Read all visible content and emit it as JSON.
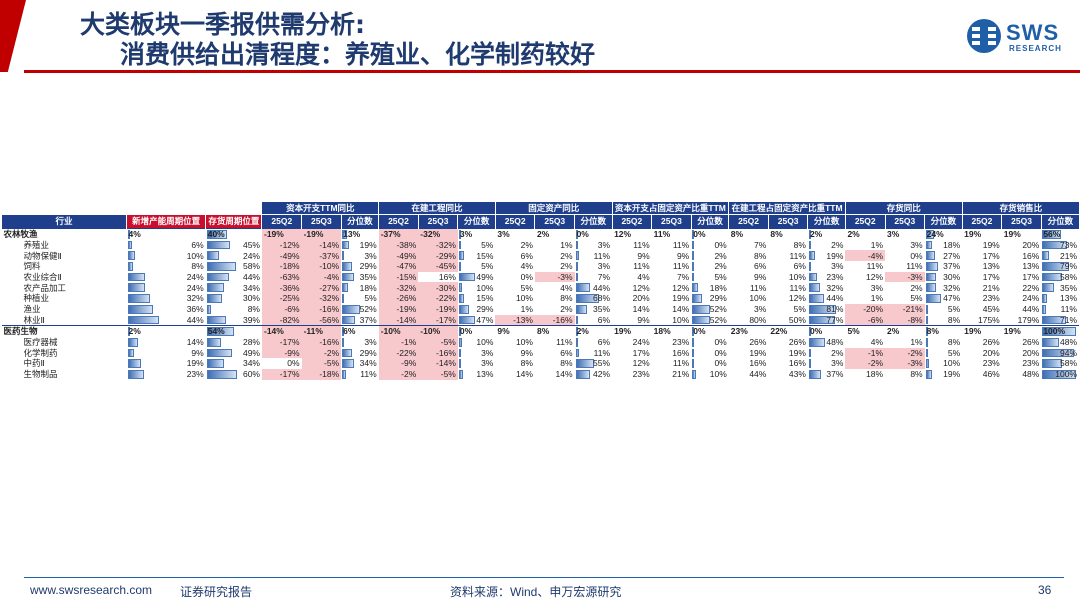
{
  "header": {
    "title_line1": "大类板块一季报供需分析:",
    "title_line2": "消费供给出清程度：养殖业、化学制药较好",
    "logo_text": "SWS",
    "logo_sub": "RESEARCH"
  },
  "table": {
    "group_headers": [
      "资本开支TTM同比",
      "在建工程同比",
      "固定资产同比",
      "资本开支占固定资产比重TTM",
      "在建工程占固定资产比重TTM",
      "存货同比",
      "存货销售比"
    ],
    "col_industry": "行业",
    "col_capacity": "新增产能周期位置",
    "col_inventory": "存货周期位置",
    "sub_headers": [
      "25Q2",
      "25Q3",
      "分位数"
    ],
    "rows": [
      {
        "name": "农林牧渔",
        "sec": true,
        "c1": "4%",
        "c1v": 4,
        "c2": "40%",
        "c2v": 40,
        "g": [
          [
            "-19%",
            "-19%",
            "13%",
            13
          ],
          [
            "-37%",
            "-32%",
            "3%",
            3
          ],
          [
            "3%",
            "2%",
            "0%",
            0
          ],
          [
            "12%",
            "11%",
            "0%",
            0
          ],
          [
            "8%",
            "8%",
            "2%",
            2
          ],
          [
            "2%",
            "3%",
            "24%",
            24
          ],
          [
            "19%",
            "19%",
            "56%",
            56
          ]
        ]
      },
      {
        "name": "养殖业",
        "c1": "6%",
        "c1v": 6,
        "c2": "45%",
        "c2v": 45,
        "g": [
          [
            "-12%",
            "-14%",
            "19%",
            19
          ],
          [
            "-38%",
            "-32%",
            "5%",
            5
          ],
          [
            "2%",
            "1%",
            "3%",
            3
          ],
          [
            "11%",
            "11%",
            "0%",
            0
          ],
          [
            "7%",
            "8%",
            "2%",
            2
          ],
          [
            "1%",
            "3%",
            "18%",
            18
          ],
          [
            "19%",
            "20%",
            "73%",
            73
          ]
        ]
      },
      {
        "name": "动物保健Ⅱ",
        "c1": "10%",
        "c1v": 10,
        "c2": "24%",
        "c2v": 24,
        "g": [
          [
            "-49%",
            "-37%",
            "3%",
            3
          ],
          [
            "-49%",
            "-29%",
            "15%",
            15
          ],
          [
            "6%",
            "2%",
            "11%",
            11
          ],
          [
            "9%",
            "9%",
            "2%",
            2
          ],
          [
            "8%",
            "11%",
            "19%",
            19
          ],
          [
            "-4%",
            "0%",
            "27%",
            27
          ],
          [
            "17%",
            "16%",
            "21%",
            21
          ]
        ]
      },
      {
        "name": "饲料",
        "c1": "8%",
        "c1v": 8,
        "c2": "58%",
        "c2v": 58,
        "g": [
          [
            "-18%",
            "-10%",
            "29%",
            29
          ],
          [
            "-47%",
            "-45%",
            "5%",
            5
          ],
          [
            "4%",
            "2%",
            "3%",
            3
          ],
          [
            "11%",
            "11%",
            "2%",
            2
          ],
          [
            "6%",
            "6%",
            "3%",
            3
          ],
          [
            "11%",
            "11%",
            "37%",
            37
          ],
          [
            "13%",
            "13%",
            "79%",
            79
          ]
        ]
      },
      {
        "name": "农业综合Ⅱ",
        "c1": "24%",
        "c1v": 24,
        "c2": "44%",
        "c2v": 44,
        "g": [
          [
            "-63%",
            "-4%",
            "35%",
            35
          ],
          [
            "-15%",
            "16%",
            "49%",
            49
          ],
          [
            "0%",
            "-3%",
            "7%",
            7
          ],
          [
            "4%",
            "7%",
            "5%",
            5
          ],
          [
            "9%",
            "10%",
            "23%",
            23
          ],
          [
            "12%",
            "-3%",
            "30%",
            30
          ],
          [
            "17%",
            "17%",
            "58%",
            58
          ]
        ]
      },
      {
        "name": "农产品加工",
        "c1": "24%",
        "c1v": 24,
        "c2": "34%",
        "c2v": 34,
        "g": [
          [
            "-36%",
            "-27%",
            "18%",
            18
          ],
          [
            "-32%",
            "-30%",
            "10%",
            10
          ],
          [
            "5%",
            "4%",
            "44%",
            44
          ],
          [
            "12%",
            "12%",
            "18%",
            18
          ],
          [
            "11%",
            "11%",
            "32%",
            32
          ],
          [
            "3%",
            "2%",
            "32%",
            32
          ],
          [
            "21%",
            "22%",
            "35%",
            35
          ]
        ]
      },
      {
        "name": "种植业",
        "c1": "32%",
        "c1v": 32,
        "c2": "30%",
        "c2v": 30,
        "g": [
          [
            "-25%",
            "-32%",
            "5%",
            5
          ],
          [
            "-26%",
            "-22%",
            "15%",
            15
          ],
          [
            "10%",
            "8%",
            "68%",
            68
          ],
          [
            "20%",
            "19%",
            "29%",
            29
          ],
          [
            "10%",
            "12%",
            "44%",
            44
          ],
          [
            "1%",
            "5%",
            "47%",
            47
          ],
          [
            "23%",
            "24%",
            "13%",
            13
          ]
        ]
      },
      {
        "name": "渔业",
        "c1": "36%",
        "c1v": 36,
        "c2": "8%",
        "c2v": 8,
        "g": [
          [
            "-6%",
            "-16%",
            "52%",
            52
          ],
          [
            "-19%",
            "-19%",
            "29%",
            29
          ],
          [
            "1%",
            "2%",
            "35%",
            35
          ],
          [
            "14%",
            "14%",
            "52%",
            52
          ],
          [
            "3%",
            "5%",
            "81%",
            81
          ],
          [
            "-20%",
            "-21%",
            "5%",
            5
          ],
          [
            "45%",
            "44%",
            "11%",
            11
          ]
        ]
      },
      {
        "name": "林业Ⅱ",
        "c1": "44%",
        "c1v": 44,
        "c2": "39%",
        "c2v": 39,
        "g": [
          [
            "-82%",
            "-56%",
            "37%",
            37
          ],
          [
            "-14%",
            "-17%",
            "47%",
            47
          ],
          [
            "-13%",
            "-16%",
            "6%",
            6
          ],
          [
            "9%",
            "10%",
            "52%",
            52
          ],
          [
            "80%",
            "50%",
            "77%",
            77
          ],
          [
            "-6%",
            "-8%",
            "8%",
            8
          ],
          [
            "175%",
            "179%",
            "71%",
            71
          ]
        ]
      },
      {
        "name": "医药生物",
        "sec": true,
        "c1": "2%",
        "c1v": 2,
        "c2": "54%",
        "c2v": 54,
        "g": [
          [
            "-14%",
            "-11%",
            "6%",
            6
          ],
          [
            "-10%",
            "-10%",
            "0%",
            0
          ],
          [
            "9%",
            "8%",
            "2%",
            2
          ],
          [
            "19%",
            "18%",
            "0%",
            0
          ],
          [
            "23%",
            "22%",
            "0%",
            0
          ],
          [
            "5%",
            "2%",
            "8%",
            8
          ],
          [
            "19%",
            "19%",
            "100%",
            100
          ]
        ]
      },
      {
        "name": "医疗器械",
        "c1": "14%",
        "c1v": 14,
        "c2": "28%",
        "c2v": 28,
        "g": [
          [
            "-17%",
            "-16%",
            "3%",
            3
          ],
          [
            "-1%",
            "-5%",
            "10%",
            10
          ],
          [
            "10%",
            "11%",
            "6%",
            6
          ],
          [
            "24%",
            "23%",
            "0%",
            0
          ],
          [
            "26%",
            "26%",
            "48%",
            48
          ],
          [
            "4%",
            "1%",
            "8%",
            8
          ],
          [
            "26%",
            "26%",
            "48%",
            48
          ]
        ]
      },
      {
        "name": "化学制药",
        "c1": "9%",
        "c1v": 9,
        "c2": "49%",
        "c2v": 49,
        "g": [
          [
            "-9%",
            "-2%",
            "29%",
            29
          ],
          [
            "-22%",
            "-16%",
            "3%",
            3
          ],
          [
            "9%",
            "6%",
            "11%",
            11
          ],
          [
            "17%",
            "16%",
            "0%",
            0
          ],
          [
            "19%",
            "19%",
            "2%",
            2
          ],
          [
            "-1%",
            "-2%",
            "5%",
            5
          ],
          [
            "20%",
            "20%",
            "94%",
            94
          ]
        ]
      },
      {
        "name": "中药Ⅱ",
        "c1": "19%",
        "c1v": 19,
        "c2": "34%",
        "c2v": 34,
        "g": [
          [
            "0%",
            "-5%",
            "34%",
            34
          ],
          [
            "-9%",
            "-14%",
            "3%",
            3
          ],
          [
            "8%",
            "8%",
            "55%",
            55
          ],
          [
            "12%",
            "11%",
            "0%",
            0
          ],
          [
            "16%",
            "16%",
            "3%",
            3
          ],
          [
            "-2%",
            "-3%",
            "10%",
            10
          ],
          [
            "23%",
            "23%",
            "58%",
            58
          ]
        ]
      },
      {
        "name": "生物制品",
        "c1": "23%",
        "c1v": 23,
        "c2": "60%",
        "c2v": 60,
        "g": [
          [
            "-17%",
            "-18%",
            "11%",
            11
          ],
          [
            "-2%",
            "-5%",
            "13%",
            13
          ],
          [
            "14%",
            "14%",
            "42%",
            42
          ],
          [
            "23%",
            "21%",
            "10%",
            10
          ],
          [
            "44%",
            "43%",
            "37%",
            37
          ],
          [
            "18%",
            "8%",
            "19%",
            19
          ],
          [
            "46%",
            "48%",
            "100%",
            100
          ]
        ]
      }
    ]
  },
  "footer": {
    "url": "www.swsresearch.com",
    "label": "证券研究报告",
    "source": "资料来源：Wind、申万宏源研究",
    "page": "36"
  },
  "colors": {
    "brand": "#1f3f8c",
    "accent": "#c00000",
    "negative": "#f7c9cd"
  }
}
